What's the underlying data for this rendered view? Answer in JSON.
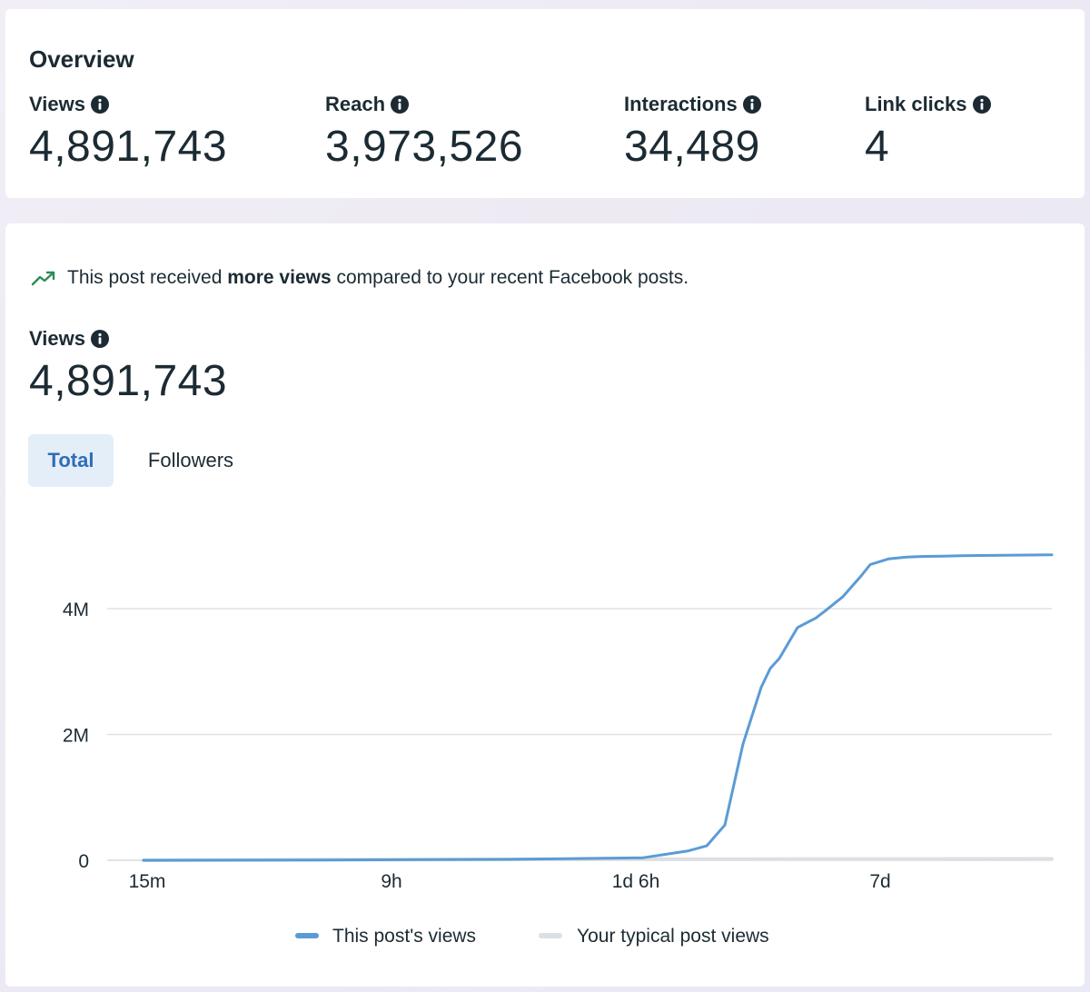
{
  "overview": {
    "title": "Overview",
    "metrics": [
      {
        "label": "Views",
        "value": "4,891,743",
        "icon": "info-icon"
      },
      {
        "label": "Reach",
        "value": "3,973,526",
        "icon": "info-icon"
      },
      {
        "label": "Interactions",
        "value": "34,489",
        "icon": "info-icon"
      },
      {
        "label": "Link clicks",
        "value": "4",
        "icon": "info-icon"
      }
    ]
  },
  "views_section": {
    "trend_icon": "trending-up-icon",
    "trend_prefix": "This post received ",
    "trend_bold": "more views",
    "trend_suffix": " compared to your recent Facebook posts.",
    "label": "Views",
    "value": "4,891,743",
    "toggles": {
      "total": "Total",
      "followers": "Followers",
      "selected": "Total"
    }
  },
  "colors": {
    "accent": "#2f6db5",
    "series_main": "#5b9bd5",
    "series_typical": "#dcdfe3",
    "trend_green": "#2e8b57",
    "selected_toggle_bg": "#e4eef8"
  },
  "chart_data": {
    "type": "line",
    "title": "",
    "xlabel": "",
    "ylabel": "",
    "x_tick_labels": [
      "15m",
      "9h",
      "1d 6h",
      "7d"
    ],
    "y_tick_labels": [
      "0",
      "2M",
      "4M"
    ],
    "y_ticks": [
      0,
      2000000,
      4000000
    ],
    "ylim": [
      0,
      5000000
    ],
    "xlim": [
      0,
      1
    ],
    "grid": true,
    "legend_position": "bottom-center",
    "series": [
      {
        "name": "This post's views",
        "color": "#5b9bd5",
        "x": [
          0,
          0.2,
          0.4,
          0.55,
          0.6,
          0.62,
          0.64,
          0.66,
          0.68,
          0.69,
          0.7,
          0.72,
          0.74,
          0.75,
          0.77,
          0.79,
          0.8,
          0.82,
          0.84,
          0.86,
          0.88,
          0.9,
          0.92,
          0.96,
          1.0
        ],
        "values": [
          0,
          5000,
          15000,
          40000,
          150000,
          230000,
          560000,
          1850000,
          2750000,
          3050000,
          3210000,
          3700000,
          3850000,
          3960000,
          4190000,
          4520000,
          4700000,
          4790000,
          4820000,
          4830000,
          4835000,
          4840000,
          4845000,
          4850000,
          4855000
        ]
      },
      {
        "name": "Your typical post views",
        "color": "#dcdfe3",
        "x": [
          0,
          0.2,
          0.4,
          0.6,
          0.8,
          1.0
        ],
        "values": [
          0,
          10000,
          15000,
          18000,
          20000,
          21000
        ]
      }
    ]
  }
}
